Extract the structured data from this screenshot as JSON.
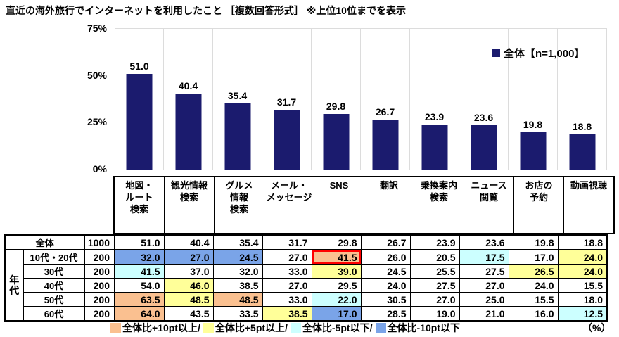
{
  "title": "直近の海外旅行でインターネットを利用したこと ［複数回答形式］ ※上位10位までを表示",
  "colors": {
    "bar": "#1B1B6E",
    "plus10": "#FAC090",
    "plus5": "#FFFF99",
    "minus5": "#CCFFFF",
    "minus10": "#7AA4E8",
    "highlight": "#FF0000"
  },
  "chart_data": {
    "type": "bar",
    "title": "直近の海外旅行でインターネットを利用したこと",
    "categories": [
      "地図・\nルート\n検索",
      "観光情報\n検索",
      "グルメ\n情報\n検索",
      "メール・\nメッセージ",
      "SNS",
      "翻訳",
      "乗換案内\n検索",
      "ニュース\n閲覧",
      "お店の\n予約",
      "動画視聴"
    ],
    "values": [
      51.0,
      40.4,
      35.4,
      31.7,
      29.8,
      26.7,
      23.9,
      23.6,
      19.8,
      18.8
    ],
    "legend": "全体【n=1,000】",
    "legend_position": "top-right",
    "yticks": [
      0,
      25,
      50,
      75
    ],
    "ylim": [
      0,
      75
    ],
    "grid": "vertical-only"
  },
  "table": {
    "group_label": "年代",
    "overall_row": {
      "label": "全体",
      "n": "1000",
      "values": [
        51.0,
        40.4,
        35.4,
        31.7,
        29.8,
        26.7,
        23.9,
        23.6,
        19.8,
        18.8
      ],
      "flags": [
        "",
        "",
        "",
        "",
        "",
        "",
        "",
        "",
        "",
        ""
      ]
    },
    "age_rows": [
      {
        "label": "10代・20代",
        "n": "200",
        "values": [
          32.0,
          27.0,
          24.5,
          27.0,
          41.5,
          26.0,
          20.5,
          17.5,
          17.0,
          24.0
        ],
        "flags": [
          "m10",
          "m10",
          "m10",
          "",
          "p10",
          "",
          "",
          "m5",
          "",
          "p5"
        ]
      },
      {
        "label": "30代",
        "n": "200",
        "values": [
          41.5,
          37.0,
          32.0,
          33.0,
          39.0,
          24.5,
          25.5,
          27.5,
          26.5,
          24.0
        ],
        "flags": [
          "m5",
          "",
          "",
          "",
          "p5",
          "",
          "",
          "",
          "p5",
          "p5"
        ]
      },
      {
        "label": "40代",
        "n": "200",
        "values": [
          54.0,
          46.0,
          38.5,
          27.0,
          29.5,
          24.0,
          27.5,
          27.0,
          24.0,
          15.5
        ],
        "flags": [
          "",
          "p5",
          "",
          "",
          "",
          "",
          "",
          "",
          "",
          ""
        ]
      },
      {
        "label": "50代",
        "n": "200",
        "values": [
          63.5,
          48.5,
          48.5,
          33.0,
          22.0,
          30.5,
          27.0,
          25.0,
          15.5,
          18.0
        ],
        "flags": [
          "p10",
          "p5",
          "p10",
          "",
          "m5",
          "",
          "",
          "",
          "",
          ""
        ]
      },
      {
        "label": "60代",
        "n": "200",
        "values": [
          64.0,
          43.5,
          33.5,
          38.5,
          17.0,
          28.5,
          19.0,
          21.0,
          16.0,
          12.5
        ],
        "flags": [
          "p10",
          "",
          "",
          "p5",
          "m10",
          "",
          "",
          "",
          "",
          "m5"
        ]
      }
    ],
    "highlight": {
      "row": 0,
      "col": 4
    }
  },
  "legend_bottom": {
    "items": [
      {
        "label": "全体比+10pt以上/",
        "flag": "p10"
      },
      {
        "label": "全体比+5pt以上/",
        "flag": "p5"
      },
      {
        "label": "全体比-5pt以下/",
        "flag": "m5"
      },
      {
        "label": "全体比-10pt以下",
        "flag": "m10"
      }
    ],
    "unit": "（%）"
  }
}
